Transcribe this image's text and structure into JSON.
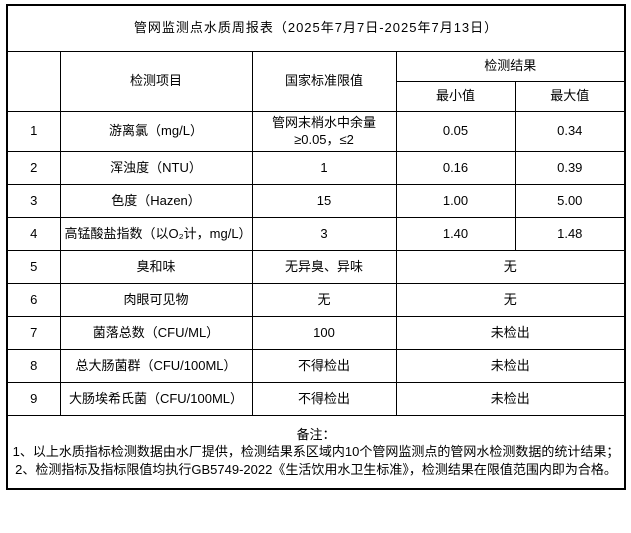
{
  "title": "管网监测点水质周报表（2025年7月7日-2025年7月13日）",
  "table": {
    "headers": {
      "index": "",
      "item": "检测项目",
      "limit": "国家标准限值",
      "result_group": "检测结果",
      "min": "最小值",
      "max": "最大值"
    },
    "rows": [
      {
        "no": "1",
        "item": "游离氯（mg/L）",
        "limit": "管网末梢水中余量≥0.05，≤2",
        "min": "0.05",
        "max": "0.34",
        "merged": false
      },
      {
        "no": "2",
        "item": "浑浊度（NTU）",
        "limit": "1",
        "min": "0.16",
        "max": "0.39",
        "merged": false
      },
      {
        "no": "3",
        "item": "色度（Hazen）",
        "limit": "15",
        "min": "1.00",
        "max": "5.00",
        "merged": false
      },
      {
        "no": "4",
        "item": "高锰酸盐指数（以O₂计，mg/L）",
        "limit": "3",
        "min": "1.40",
        "max": "1.48",
        "merged": false
      },
      {
        "no": "5",
        "item": "臭和味",
        "limit": "无异臭、异味",
        "result": "无",
        "merged": true
      },
      {
        "no": "6",
        "item": "肉眼可见物",
        "limit": "无",
        "result": "无",
        "merged": true
      },
      {
        "no": "7",
        "item": "菌落总数（CFU/ML）",
        "limit": "100",
        "result": "未检出",
        "merged": true
      },
      {
        "no": "8",
        "item": "总大肠菌群（CFU/100ML）",
        "limit": "不得检出",
        "result": "未检出",
        "merged": true
      },
      {
        "no": "9",
        "item": "大肠埃希氏菌（CFU/100ML）",
        "limit": "不得检出",
        "result": "未检出",
        "merged": true
      }
    ]
  },
  "notes": {
    "label": "备注：",
    "items": [
      "1、以上水质指标检测数据由水厂提供，检测结果系区域内10个管网监测点的管网水检测数据的统计结果；",
      "2、检测指标及指标限值均执行GB5749-2022《生活饮用水卫生标准》，检测结果在限值范围内即为合格。"
    ]
  },
  "colors": {
    "border": "#000000",
    "background": "#ffffff",
    "text": "#000000"
  }
}
